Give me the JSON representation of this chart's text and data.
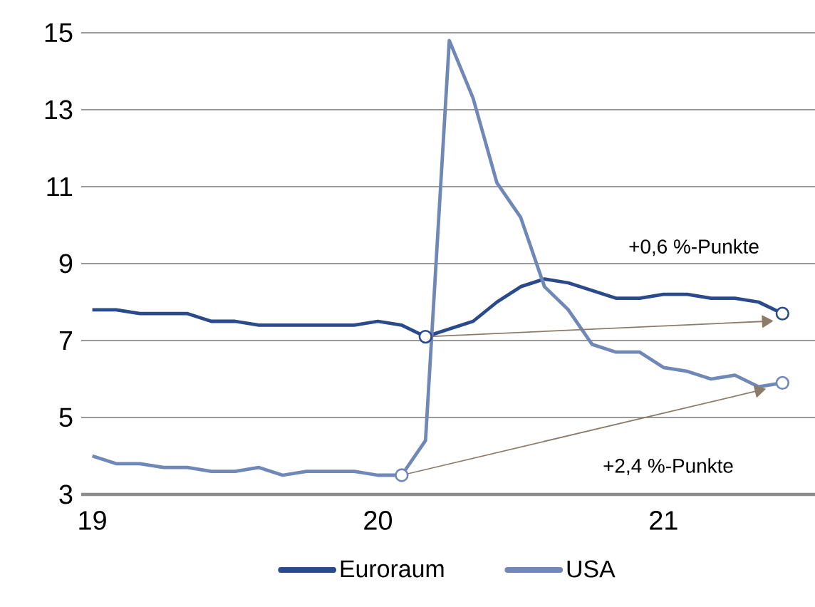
{
  "chart_data": {
    "type": "line",
    "x": [
      "2019-01",
      "2019-02",
      "2019-03",
      "2019-04",
      "2019-05",
      "2019-06",
      "2019-07",
      "2019-08",
      "2019-09",
      "2019-10",
      "2019-11",
      "2019-12",
      "2020-01",
      "2020-02",
      "2020-03",
      "2020-04",
      "2020-05",
      "2020-06",
      "2020-07",
      "2020-08",
      "2020-09",
      "2020-10",
      "2020-11",
      "2020-12",
      "2021-01",
      "2021-02",
      "2021-03",
      "2021-04",
      "2021-05",
      "2021-06"
    ],
    "series": [
      {
        "name": "Euroraum",
        "color": "#2b4a8b",
        "values": [
          7.8,
          7.8,
          7.7,
          7.7,
          7.7,
          7.5,
          7.5,
          7.4,
          7.4,
          7.4,
          7.4,
          7.4,
          7.5,
          7.4,
          7.1,
          7.3,
          7.5,
          8.0,
          8.4,
          8.6,
          8.5,
          8.3,
          8.1,
          8.1,
          8.2,
          8.2,
          8.1,
          8.1,
          8.0,
          7.7
        ]
      },
      {
        "name": "USA",
        "color": "#7088b8",
        "values": [
          4.0,
          3.8,
          3.8,
          3.7,
          3.7,
          3.6,
          3.6,
          3.7,
          3.5,
          3.6,
          3.6,
          3.6,
          3.5,
          3.5,
          4.4,
          14.8,
          13.3,
          11.1,
          10.2,
          8.4,
          7.8,
          6.9,
          6.7,
          6.7,
          6.3,
          6.2,
          6.0,
          6.1,
          5.8,
          5.9
        ]
      },
      {
        "type": "scatter",
        "marker": "circle",
        "color": "#2b4a8b",
        "x": [
          "2020-03",
          "2021-06"
        ],
        "values": [
          7.1,
          7.7
        ]
      },
      {
        "type": "scatter",
        "marker": "circle",
        "color": "#7088b8",
        "x": [
          "2020-02",
          "2021-06"
        ],
        "values": [
          3.5,
          5.9
        ]
      },
      {
        "type": "line",
        "color": "#8c7b68",
        "x": [
          "2020-03",
          "2021-05-10"
        ],
        "values": [
          7.1,
          7.5
        ]
      },
      {
        "type": "line",
        "color": "#8c7b68",
        "x": [
          "2020-02",
          "2021-05"
        ],
        "values": [
          3.5,
          5.7
        ]
      }
    ],
    "xlim": [
      "2018-12-17",
      "2021-07-12"
    ],
    "xticks": [
      {
        "value": "2019-01",
        "label": "19"
      },
      {
        "value": "2020-01",
        "label": "20"
      },
      {
        "value": "2021-01",
        "label": "21"
      }
    ],
    "ylim": [
      3,
      15
    ],
    "yticks": [
      3,
      5,
      7,
      9,
      11,
      13,
      15
    ],
    "grid": "y",
    "legend": "bottom",
    "annotations": [
      "+0,6 %-Punkte",
      "+2,4 %-Punkte"
    ]
  }
}
